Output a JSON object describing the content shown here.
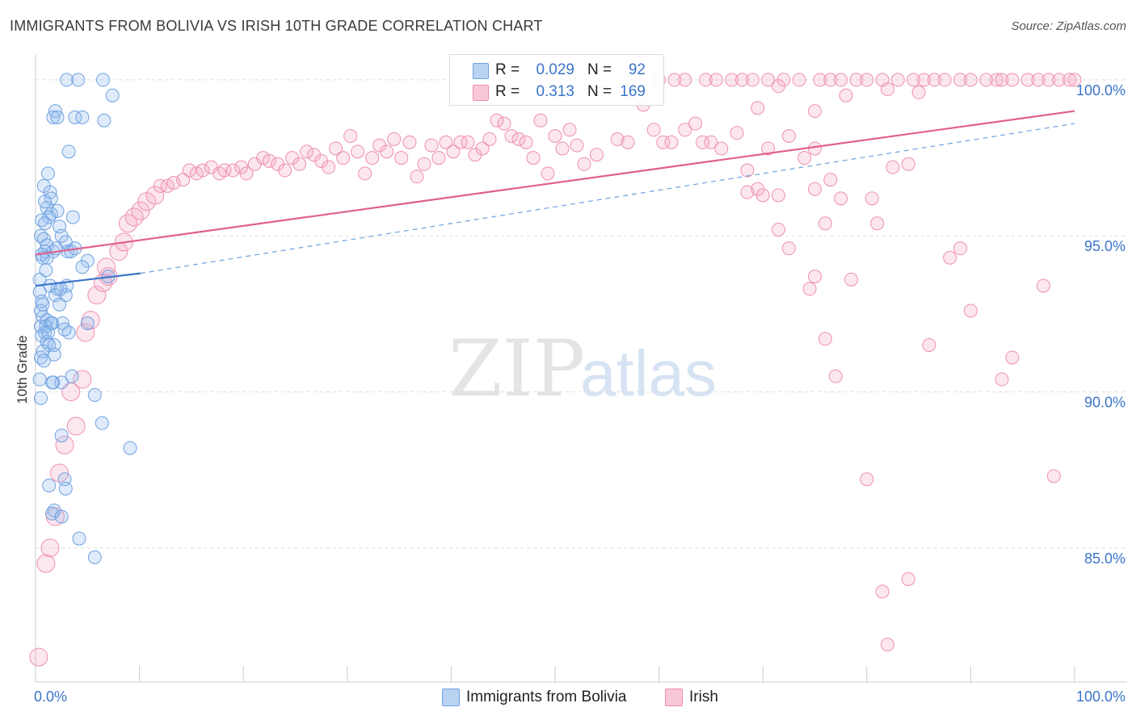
{
  "title": "IMMIGRANTS FROM BOLIVIA VS IRISH 10TH GRADE CORRELATION CHART",
  "source": "Source: ZipAtlas.com",
  "watermark": {
    "zip": "ZIP",
    "atlas": "atlas"
  },
  "legend": {
    "r_label": "R =",
    "n_label": "N =",
    "rows": [
      {
        "r": "0.029",
        "n": "92",
        "color": "#6fa1e0"
      },
      {
        "r": "0.313",
        "n": "169",
        "color": "#ee8fb0"
      }
    ]
  },
  "bottom_legend": [
    "Immigrants from Bolivia",
    "Irish"
  ],
  "chart_data": {
    "type": "scatter",
    "title": "IMMIGRANTS FROM BOLIVIA VS IRISH 10TH GRADE CORRELATION CHART",
    "xlabel": "",
    "ylabel": "10th Grade",
    "xlim": [
      0,
      100
    ],
    "ylim": [
      80.7,
      100.8
    ],
    "x_tick_labels": [
      "0.0%",
      "100.0%"
    ],
    "y_ticks": [
      85,
      90,
      95,
      100
    ],
    "y_tick_labels": [
      "85.0%",
      "90.0%",
      "95.0%",
      "100.0%"
    ],
    "grid": true,
    "legend_position": "top-center",
    "series": [
      {
        "name": "Immigrants from Bolivia",
        "color": "#6fa1e0",
        "r": 0.029,
        "n": 92,
        "trend": {
          "x": [
            0,
            10.1
          ],
          "y": [
            93.4,
            93.8
          ],
          "dashed_extension": {
            "x": [
              10.1,
              100
            ],
            "y": [
              93.8,
              98.6
            ]
          }
        },
        "points": [
          [
            3.0,
            100.0
          ],
          [
            4.1,
            100.0
          ],
          [
            6.5,
            100.0
          ],
          [
            7.4,
            99.5
          ],
          [
            1.9,
            99.0
          ],
          [
            1.7,
            98.8
          ],
          [
            2.1,
            98.8
          ],
          [
            3.8,
            98.8
          ],
          [
            4.5,
            98.8
          ],
          [
            6.6,
            98.7
          ],
          [
            3.2,
            97.7
          ],
          [
            1.2,
            97.0
          ],
          [
            0.8,
            96.6
          ],
          [
            1.4,
            96.4
          ],
          [
            1.5,
            96.2
          ],
          [
            1.1,
            95.9
          ],
          [
            1.5,
            95.7
          ],
          [
            2.1,
            95.8
          ],
          [
            3.6,
            95.6
          ],
          [
            1.3,
            95.6
          ],
          [
            0.6,
            95.5
          ],
          [
            0.9,
            95.4
          ],
          [
            2.3,
            95.3
          ],
          [
            0.5,
            95.0
          ],
          [
            0.8,
            94.9
          ],
          [
            2.5,
            95.0
          ],
          [
            1.1,
            94.7
          ],
          [
            2.9,
            94.8
          ],
          [
            0.9,
            94.5
          ],
          [
            1.7,
            94.5
          ],
          [
            3.1,
            94.5
          ],
          [
            3.4,
            94.5
          ],
          [
            0.7,
            94.3
          ],
          [
            1.1,
            94.3
          ],
          [
            5.0,
            94.2
          ],
          [
            0.6,
            94.4
          ],
          [
            4.5,
            94.0
          ],
          [
            0.4,
            93.6
          ],
          [
            7.0,
            93.7
          ],
          [
            3.0,
            93.4
          ],
          [
            1.4,
            93.4
          ],
          [
            2.1,
            93.3
          ],
          [
            0.4,
            93.2
          ],
          [
            1.9,
            93.1
          ],
          [
            2.9,
            93.1
          ],
          [
            0.6,
            92.9
          ],
          [
            2.3,
            92.8
          ],
          [
            0.5,
            92.6
          ],
          [
            0.7,
            92.4
          ],
          [
            1.1,
            92.3
          ],
          [
            1.6,
            92.2
          ],
          [
            2.6,
            92.2
          ],
          [
            5.0,
            92.2
          ],
          [
            1.0,
            92.1
          ],
          [
            0.5,
            92.1
          ],
          [
            0.9,
            91.9
          ],
          [
            0.6,
            91.8
          ],
          [
            3.2,
            91.9
          ],
          [
            1.1,
            91.6
          ],
          [
            1.3,
            91.5
          ],
          [
            1.8,
            91.5
          ],
          [
            0.7,
            91.3
          ],
          [
            1.8,
            91.2
          ],
          [
            0.5,
            91.1
          ],
          [
            0.8,
            91.0
          ],
          [
            3.5,
            90.5
          ],
          [
            0.4,
            90.4
          ],
          [
            1.7,
            90.3
          ],
          [
            2.5,
            90.3
          ],
          [
            5.7,
            89.9
          ],
          [
            0.5,
            89.8
          ],
          [
            6.4,
            89.0
          ],
          [
            2.5,
            88.6
          ],
          [
            9.1,
            88.2
          ],
          [
            2.8,
            87.2
          ],
          [
            1.3,
            87.0
          ],
          [
            2.9,
            86.9
          ],
          [
            1.8,
            86.2
          ],
          [
            1.6,
            86.1
          ],
          [
            2.5,
            86.0
          ],
          [
            4.2,
            85.3
          ],
          [
            5.7,
            84.7
          ],
          [
            2.0,
            94.6
          ],
          [
            1.5,
            92.2
          ],
          [
            0.9,
            96.1
          ],
          [
            2.4,
            93.3
          ],
          [
            1.0,
            93.9
          ],
          [
            3.8,
            94.6
          ],
          [
            1.2,
            91.9
          ],
          [
            0.7,
            92.8
          ],
          [
            2.8,
            92.0
          ],
          [
            1.6,
            90.3
          ]
        ]
      },
      {
        "name": "Irish",
        "color": "#ee8fb0",
        "r": 0.313,
        "n": 169,
        "trend": {
          "x": [
            0,
            100
          ],
          "y": [
            94.4,
            99.0
          ]
        },
        "points": [
          [
            0.3,
            81.5
          ],
          [
            1.0,
            84.5
          ],
          [
            1.4,
            85.0
          ],
          [
            1.9,
            86.0
          ],
          [
            2.3,
            87.4
          ],
          [
            2.8,
            88.3
          ],
          [
            3.9,
            88.9
          ],
          [
            3.4,
            90.0
          ],
          [
            4.5,
            90.4
          ],
          [
            4.8,
            91.9
          ],
          [
            5.3,
            92.3
          ],
          [
            5.9,
            93.1
          ],
          [
            6.5,
            93.5
          ],
          [
            7.0,
            93.7
          ],
          [
            6.8,
            94.0
          ],
          [
            8.0,
            94.5
          ],
          [
            8.5,
            94.8
          ],
          [
            8.9,
            95.4
          ],
          [
            9.5,
            95.6
          ],
          [
            10.1,
            95.8
          ],
          [
            10.7,
            96.1
          ],
          [
            11.5,
            96.3
          ],
          [
            12.0,
            96.6
          ],
          [
            12.7,
            96.6
          ],
          [
            13.3,
            96.7
          ],
          [
            14.2,
            96.8
          ],
          [
            14.8,
            97.1
          ],
          [
            15.5,
            97.0
          ],
          [
            16.1,
            97.1
          ],
          [
            16.9,
            97.2
          ],
          [
            17.7,
            97.0
          ],
          [
            18.2,
            97.1
          ],
          [
            19.0,
            97.1
          ],
          [
            19.8,
            97.2
          ],
          [
            20.3,
            97.0
          ],
          [
            21.1,
            97.3
          ],
          [
            21.9,
            97.5
          ],
          [
            22.5,
            97.4
          ],
          [
            23.3,
            97.3
          ],
          [
            24.0,
            97.1
          ],
          [
            24.7,
            97.5
          ],
          [
            25.4,
            97.3
          ],
          [
            26.1,
            97.7
          ],
          [
            26.8,
            97.6
          ],
          [
            27.5,
            97.4
          ],
          [
            28.2,
            97.2
          ],
          [
            28.9,
            97.8
          ],
          [
            29.6,
            97.5
          ],
          [
            30.3,
            98.2
          ],
          [
            31.0,
            97.7
          ],
          [
            31.7,
            97.0
          ],
          [
            32.4,
            97.5
          ],
          [
            33.1,
            97.9
          ],
          [
            33.8,
            97.7
          ],
          [
            34.5,
            98.1
          ],
          [
            35.2,
            97.5
          ],
          [
            36.0,
            98.0
          ],
          [
            36.7,
            96.9
          ],
          [
            37.4,
            97.3
          ],
          [
            38.1,
            97.9
          ],
          [
            38.8,
            97.5
          ],
          [
            39.5,
            98.0
          ],
          [
            40.2,
            97.7
          ],
          [
            40.9,
            98.0
          ],
          [
            41.6,
            98.0
          ],
          [
            42.3,
            97.6
          ],
          [
            43.0,
            97.8
          ],
          [
            43.7,
            98.1
          ],
          [
            44.4,
            98.7
          ],
          [
            45.1,
            98.6
          ],
          [
            45.8,
            98.2
          ],
          [
            46.5,
            98.1
          ],
          [
            47.2,
            98.0
          ],
          [
            47.9,
            97.5
          ],
          [
            48.6,
            98.7
          ],
          [
            49.3,
            97.0
          ],
          [
            50.0,
            98.2
          ],
          [
            50.7,
            97.8
          ],
          [
            51.4,
            98.4
          ],
          [
            52.1,
            97.9
          ],
          [
            52.8,
            97.3
          ],
          [
            54.0,
            97.6
          ],
          [
            56.0,
            98.1
          ],
          [
            57.0,
            98.0
          ],
          [
            58.5,
            99.2
          ],
          [
            59.5,
            98.4
          ],
          [
            60.4,
            98.0
          ],
          [
            61.2,
            98.0
          ],
          [
            62.5,
            98.4
          ],
          [
            63.5,
            98.6
          ],
          [
            64.2,
            98.0
          ],
          [
            65.0,
            98.0
          ],
          [
            66.0,
            97.8
          ],
          [
            67.5,
            98.3
          ],
          [
            68.5,
            97.1
          ],
          [
            69.5,
            96.5
          ],
          [
            70.5,
            97.8
          ],
          [
            71.5,
            96.3
          ],
          [
            72.5,
            98.2
          ],
          [
            74.0,
            97.5
          ],
          [
            75.0,
            97.8
          ],
          [
            76.5,
            96.8
          ],
          [
            77.5,
            96.2
          ],
          [
            78.0,
            99.5
          ],
          [
            79.0,
            100.0
          ],
          [
            80.0,
            100.0
          ],
          [
            81.5,
            100.0
          ],
          [
            82.0,
            99.7
          ],
          [
            83.0,
            100.0
          ],
          [
            84.5,
            100.0
          ],
          [
            85.5,
            100.0
          ],
          [
            86.5,
            100.0
          ],
          [
            87.5,
            100.0
          ],
          [
            89.0,
            100.0
          ],
          [
            90.0,
            100.0
          ],
          [
            91.5,
            100.0
          ],
          [
            92.5,
            100.0
          ],
          [
            93.0,
            100.0
          ],
          [
            94.0,
            100.0
          ],
          [
            95.5,
            100.0
          ],
          [
            96.5,
            100.0
          ],
          [
            97.5,
            100.0
          ],
          [
            98.5,
            100.0
          ],
          [
            99.5,
            100.0
          ],
          [
            100.0,
            100.0
          ],
          [
            60.0,
            100.0
          ],
          [
            61.5,
            100.0
          ],
          [
            62.5,
            100.0
          ],
          [
            64.5,
            100.0
          ],
          [
            65.5,
            100.0
          ],
          [
            67.0,
            100.0
          ],
          [
            68.0,
            100.0
          ],
          [
            69.0,
            100.0
          ],
          [
            70.5,
            100.0
          ],
          [
            71.5,
            99.8
          ],
          [
            72.0,
            100.0
          ],
          [
            73.5,
            100.0
          ],
          [
            75.5,
            100.0
          ],
          [
            76.5,
            100.0
          ],
          [
            77.5,
            100.0
          ],
          [
            69.5,
            99.1
          ],
          [
            75.0,
            99.0
          ],
          [
            68.5,
            96.4
          ],
          [
            70.0,
            96.3
          ],
          [
            71.5,
            95.2
          ],
          [
            75.0,
            93.7
          ],
          [
            76.0,
            95.4
          ],
          [
            78.5,
            93.6
          ],
          [
            80.5,
            96.2
          ],
          [
            81.0,
            95.4
          ],
          [
            82.5,
            97.2
          ],
          [
            84.0,
            97.3
          ],
          [
            85.0,
            99.6
          ],
          [
            86.0,
            91.5
          ],
          [
            88.0,
            94.3
          ],
          [
            89.0,
            94.6
          ],
          [
            90.0,
            92.6
          ],
          [
            93.0,
            90.4
          ],
          [
            94.0,
            91.1
          ],
          [
            97.0,
            93.4
          ],
          [
            98.0,
            87.3
          ],
          [
            72.5,
            94.6
          ],
          [
            74.5,
            93.3
          ],
          [
            76.0,
            91.7
          ],
          [
            77.0,
            90.5
          ],
          [
            80.0,
            87.2
          ],
          [
            81.5,
            83.6
          ],
          [
            82.0,
            81.9
          ],
          [
            84.0,
            84.0
          ],
          [
            75.0,
            96.5
          ]
        ]
      }
    ]
  }
}
